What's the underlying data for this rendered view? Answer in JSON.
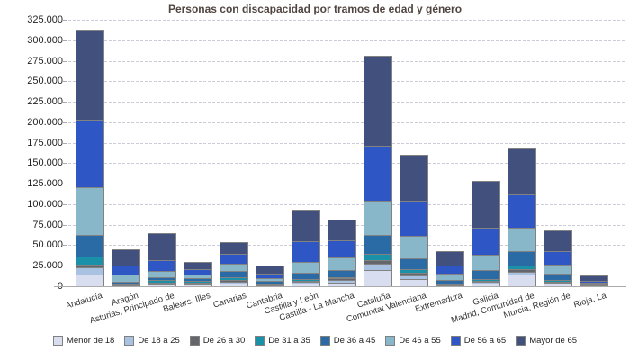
{
  "chart_data": {
    "type": "bar",
    "stacked": true,
    "title": "Personas con discapacidad por tramos de edad y género",
    "xlabel": "",
    "ylabel": "",
    "ylim": [
      0,
      325000
    ],
    "y_tick_step": 25000,
    "y_tick_labels": [
      "0",
      "25.000",
      "50.000",
      "75.000",
      "100.000",
      "125.000",
      "150.000",
      "175.000",
      "200.000",
      "225.000",
      "250.000",
      "275.000",
      "300.000",
      "325.000"
    ],
    "grid": "horizontal-dashed",
    "legend_position": "bottom",
    "categories": [
      "Andalucía",
      "Aragón",
      "Asturias, Principado de",
      "Balears, Illes",
      "Canarias",
      "Cantabria",
      "Castilla y León",
      "Castilla - La Mancha",
      "Cataluña",
      "Comunitat Valenciana",
      "Extremadura",
      "Galicia",
      "Madrid, Comunidad de",
      "Murcia, Región de",
      "Rioja, La"
    ],
    "series": [
      {
        "name": "Menor de 18",
        "color": "#d8ddf0",
        "values": [
          14800,
          600,
          2400,
          2000,
          3100,
          1200,
          3100,
          4800,
          19500,
          9300,
          1200,
          3000,
          14000,
          2800,
          700
        ]
      },
      {
        "name": "De 18 a 25",
        "color": "#a9c2e2",
        "values": [
          8000,
          500,
          1500,
          1300,
          2500,
          900,
          2200,
          3200,
          8100,
          4400,
          1000,
          2300,
          3700,
          1700,
          500
        ]
      },
      {
        "name": "De 26 a 30",
        "color": "#63676b",
        "values": [
          3700,
          300,
          1000,
          900,
          1800,
          700,
          1500,
          1400,
          4400,
          2900,
          700,
          1700,
          3700,
          800,
          300
        ]
      },
      {
        "name": "De 31 a 35",
        "color": "#1b91a9",
        "values": [
          10200,
          600,
          2500,
          2200,
          3700,
          1000,
          2200,
          1800,
          7200,
          4400,
          900,
          2300,
          4300,
          2900,
          500
        ]
      },
      {
        "name": "De 36 a 45",
        "color": "#2a6ba6",
        "values": [
          26300,
          3700,
          3800,
          3700,
          7300,
          2600,
          7200,
          9100,
          23800,
          12700,
          4400,
          11000,
          17200,
          7300,
          1100
        ]
      },
      {
        "name": "De 46 a 55",
        "color": "#87b7c9",
        "values": [
          57700,
          9100,
          7200,
          4700,
          9200,
          3700,
          13100,
          15300,
          41200,
          27800,
          7300,
          18200,
          28500,
          11000,
          1500
        ]
      },
      {
        "name": "De 56 a 65",
        "color": "#2e56c4",
        "values": [
          82100,
          10200,
          13600,
          6200,
          11600,
          5800,
          25700,
          20000,
          67500,
          42700,
          10200,
          32900,
          40100,
          16800,
          2200
        ]
      },
      {
        "name": "Mayor de 65",
        "color": "#42507e",
        "values": [
          108700,
          19000,
          32000,
          7200,
          13900,
          8700,
          37200,
          24100,
          108400,
          55500,
          16500,
          55800,
          55800,
          23300,
          5000
        ]
      }
    ],
    "totals": [
      311500,
      44000,
      64000,
      28200,
      53100,
      24600,
      92200,
      79700,
      280100,
      159700,
      42200,
      127200,
      167300,
      66600,
      11800
    ],
    "colors": {
      "gridline": "#ccccd6",
      "axis": "#aaaaaa",
      "segment_border": "#828282",
      "title_text": "#4f4440",
      "label_text": "#333333"
    }
  }
}
